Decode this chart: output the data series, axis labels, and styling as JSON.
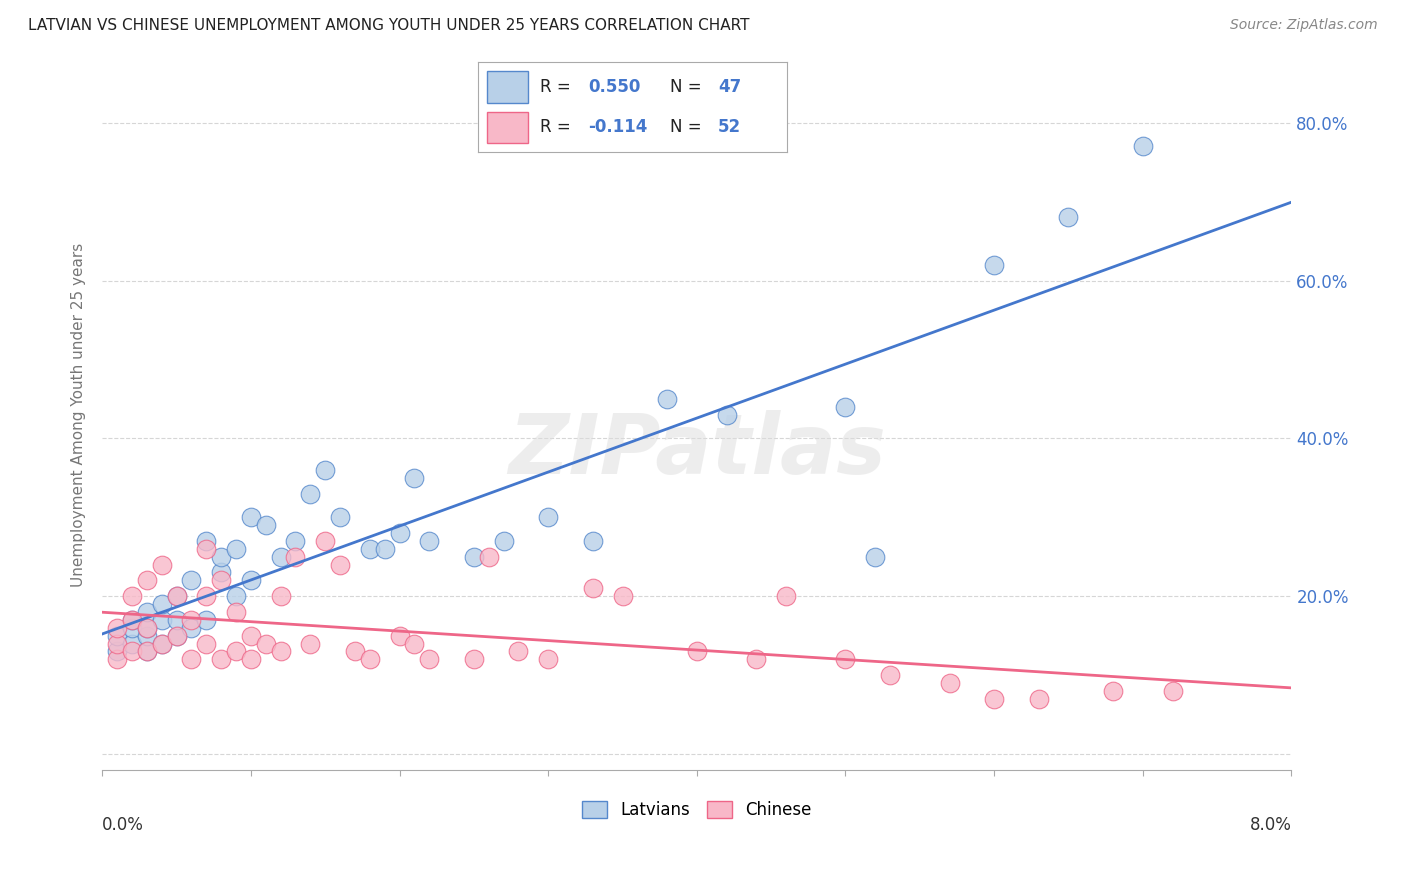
{
  "title": "LATVIAN VS CHINESE UNEMPLOYMENT AMONG YOUTH UNDER 25 YEARS CORRELATION CHART",
  "source": "Source: ZipAtlas.com",
  "ylabel": "Unemployment Among Youth under 25 years",
  "legend_latvians": "Latvians",
  "legend_chinese": "Chinese",
  "R_latvians": "0.550",
  "N_latvians": "47",
  "R_chinese": "-0.114",
  "N_chinese": "52",
  "blue_color": "#A8C4E0",
  "pink_color": "#F4A8B8",
  "blue_face": "#B8D0E8",
  "pink_face": "#F8B8C8",
  "blue_edge": "#5588CC",
  "pink_edge": "#EE6688",
  "blue_line": "#4477CC",
  "pink_line": "#EE6688",
  "xmin": 0.0,
  "xmax": 0.08,
  "ymin": -0.02,
  "ymax": 0.88,
  "latvian_x": [
    0.001,
    0.001,
    0.002,
    0.002,
    0.002,
    0.003,
    0.003,
    0.003,
    0.003,
    0.004,
    0.004,
    0.004,
    0.005,
    0.005,
    0.005,
    0.006,
    0.006,
    0.007,
    0.007,
    0.008,
    0.008,
    0.009,
    0.009,
    0.01,
    0.01,
    0.011,
    0.012,
    0.013,
    0.014,
    0.015,
    0.016,
    0.018,
    0.019,
    0.02,
    0.021,
    0.022,
    0.025,
    0.027,
    0.03,
    0.033,
    0.038,
    0.042,
    0.05,
    0.052,
    0.06,
    0.065,
    0.07
  ],
  "latvian_y": [
    0.13,
    0.15,
    0.14,
    0.16,
    0.17,
    0.13,
    0.15,
    0.16,
    0.18,
    0.14,
    0.17,
    0.19,
    0.15,
    0.17,
    0.2,
    0.16,
    0.22,
    0.17,
    0.27,
    0.23,
    0.25,
    0.2,
    0.26,
    0.22,
    0.3,
    0.29,
    0.25,
    0.27,
    0.33,
    0.36,
    0.3,
    0.26,
    0.26,
    0.28,
    0.35,
    0.27,
    0.25,
    0.27,
    0.3,
    0.27,
    0.45,
    0.43,
    0.44,
    0.25,
    0.62,
    0.68,
    0.77
  ],
  "chinese_x": [
    0.001,
    0.001,
    0.001,
    0.002,
    0.002,
    0.002,
    0.003,
    0.003,
    0.003,
    0.004,
    0.004,
    0.005,
    0.005,
    0.006,
    0.006,
    0.007,
    0.007,
    0.007,
    0.008,
    0.008,
    0.009,
    0.009,
    0.01,
    0.01,
    0.011,
    0.012,
    0.012,
    0.013,
    0.014,
    0.015,
    0.016,
    0.017,
    0.018,
    0.02,
    0.021,
    0.022,
    0.025,
    0.026,
    0.028,
    0.03,
    0.033,
    0.035,
    0.04,
    0.044,
    0.046,
    0.05,
    0.053,
    0.057,
    0.06,
    0.063,
    0.068,
    0.072
  ],
  "chinese_y": [
    0.12,
    0.14,
    0.16,
    0.13,
    0.17,
    0.2,
    0.13,
    0.16,
    0.22,
    0.14,
    0.24,
    0.15,
    0.2,
    0.12,
    0.17,
    0.14,
    0.2,
    0.26,
    0.12,
    0.22,
    0.13,
    0.18,
    0.12,
    0.15,
    0.14,
    0.13,
    0.2,
    0.25,
    0.14,
    0.27,
    0.24,
    0.13,
    0.12,
    0.15,
    0.14,
    0.12,
    0.12,
    0.25,
    0.13,
    0.12,
    0.21,
    0.2,
    0.13,
    0.12,
    0.2,
    0.12,
    0.1,
    0.09,
    0.07,
    0.07,
    0.08,
    0.08
  ],
  "yticks": [
    0.0,
    0.2,
    0.4,
    0.6,
    0.8
  ],
  "ytick_labels": [
    "",
    "20.0%",
    "40.0%",
    "60.0%",
    "80.0%"
  ],
  "background_color": "#FFFFFF",
  "grid_color": "#CCCCCC",
  "title_fontsize": 11,
  "source_fontsize": 10,
  "ylabel_fontsize": 11,
  "tick_fontsize": 12
}
